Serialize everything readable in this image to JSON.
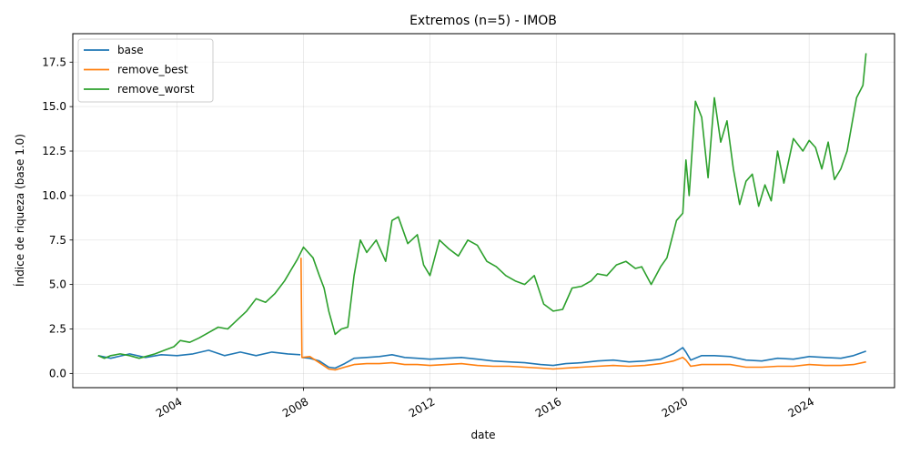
{
  "chart_data": {
    "type": "line",
    "title": "Extremos (n=5) - IMOB",
    "xlabel": "date",
    "ylabel": "Índice de riqueza (base 1.0)",
    "xlim": [
      2000.7,
      2026.7
    ],
    "ylim": [
      -0.8,
      19.1
    ],
    "x_ticks": [
      2004,
      2008,
      2012,
      2016,
      2020,
      2024
    ],
    "x_tick_labels": [
      "2004",
      "2008",
      "2012",
      "2016",
      "2020",
      "2024"
    ],
    "y_ticks": [
      0.0,
      2.5,
      5.0,
      7.5,
      10.0,
      12.5,
      15.0,
      17.5
    ],
    "y_tick_labels": [
      "0.0",
      "2.5",
      "5.0",
      "7.5",
      "10.0",
      "12.5",
      "15.0",
      "17.5"
    ],
    "grid": true,
    "legend_position": "top-left",
    "series": [
      {
        "name": "base",
        "color": "#1f77b4",
        "x": [
          2001.5,
          2001.9,
          2002.5,
          2003.0,
          2003.5,
          2004.0,
          2004.5,
          2005.0,
          2005.5,
          2006.0,
          2006.5,
          2007.0,
          2007.5,
          2007.9
        ],
        "y": [
          1.0,
          0.85,
          1.1,
          0.9,
          1.05,
          1.0,
          1.1,
          1.3,
          1.0,
          1.2,
          1.0,
          1.2,
          1.1,
          1.05
        ],
        "x2": [
          2007.95,
          2008.2,
          2008.5,
          2008.8,
          2009.0,
          2009.3,
          2009.6,
          2010.0,
          2010.4,
          2010.8,
          2011.2,
          2011.6,
          2012.0,
          2012.5,
          2013.0,
          2013.5,
          2014.0,
          2014.5,
          2015.0,
          2015.5,
          2015.9,
          2016.3,
          2016.8,
          2017.3,
          2017.8,
          2018.3,
          2018.8,
          2019.3,
          2019.7,
          2020.0,
          2020.1,
          2020.25,
          2020.6,
          2021.0,
          2021.5,
          2022.0,
          2022.5,
          2023.0,
          2023.5,
          2024.0,
          2024.5,
          2025.0,
          2025.4,
          2025.8
        ],
        "y2": [
          0.9,
          0.85,
          0.7,
          0.35,
          0.3,
          0.55,
          0.85,
          0.9,
          0.95,
          1.05,
          0.9,
          0.85,
          0.8,
          0.85,
          0.9,
          0.8,
          0.7,
          0.65,
          0.6,
          0.5,
          0.45,
          0.55,
          0.6,
          0.7,
          0.75,
          0.65,
          0.7,
          0.8,
          1.1,
          1.45,
          1.2,
          0.75,
          1.0,
          1.0,
          0.95,
          0.75,
          0.7,
          0.85,
          0.8,
          0.95,
          0.9,
          0.85,
          1.0,
          1.25
        ]
      },
      {
        "name": "remove_best",
        "color": "#ff7f0e",
        "x": [
          2007.92,
          2007.95,
          2008.2,
          2008.5,
          2008.8,
          2009.0,
          2009.3,
          2009.6,
          2010.0,
          2010.4,
          2010.8,
          2011.2,
          2011.6,
          2012.0,
          2012.5,
          2013.0,
          2013.5,
          2014.0,
          2014.5,
          2015.0,
          2015.5,
          2015.9,
          2016.3,
          2016.8,
          2017.3,
          2017.8,
          2018.3,
          2018.8,
          2019.3,
          2019.7,
          2020.0,
          2020.1,
          2020.25,
          2020.6,
          2021.0,
          2021.5,
          2022.0,
          2022.5,
          2023.0,
          2023.5,
          2024.0,
          2024.5,
          2025.0,
          2025.4,
          2025.8
        ],
        "y": [
          6.5,
          0.9,
          0.95,
          0.6,
          0.25,
          0.2,
          0.35,
          0.5,
          0.55,
          0.55,
          0.6,
          0.5,
          0.5,
          0.45,
          0.5,
          0.55,
          0.45,
          0.4,
          0.4,
          0.35,
          0.3,
          0.25,
          0.3,
          0.35,
          0.4,
          0.45,
          0.4,
          0.45,
          0.55,
          0.7,
          0.9,
          0.75,
          0.4,
          0.5,
          0.5,
          0.5,
          0.35,
          0.35,
          0.4,
          0.4,
          0.5,
          0.45,
          0.45,
          0.5,
          0.65
        ]
      },
      {
        "name": "remove_worst",
        "color": "#2ca02c",
        "x": [
          2001.5,
          2001.7,
          2001.9,
          2002.2,
          2002.5,
          2002.8,
          2003.0,
          2003.3,
          2003.6,
          2003.9,
          2004.1,
          2004.4,
          2004.7,
          2005.0,
          2005.3,
          2005.6,
          2005.9,
          2006.2,
          2006.5,
          2006.8,
          2007.1,
          2007.4,
          2007.6,
          2007.8,
          2008.0,
          2008.3,
          2008.5,
          2008.65,
          2008.8,
          2009.0,
          2009.2,
          2009.4,
          2009.6,
          2009.8,
          2010.0,
          2010.3,
          2010.6,
          2010.8,
          2011.0,
          2011.3,
          2011.6,
          2011.8,
          2012.0,
          2012.3,
          2012.6,
          2012.9,
          2013.2,
          2013.5,
          2013.8,
          2014.1,
          2014.4,
          2014.7,
          2015.0,
          2015.3,
          2015.6,
          2015.9,
          2016.2,
          2016.5,
          2016.8,
          2017.1,
          2017.3,
          2017.6,
          2017.9,
          2018.2,
          2018.5,
          2018.7,
          2019.0,
          2019.3,
          2019.5,
          2019.8,
          2020.0,
          2020.1,
          2020.2,
          2020.4,
          2020.6,
          2020.8,
          2021.0,
          2021.2,
          2021.4,
          2021.6,
          2021.8,
          2022.0,
          2022.2,
          2022.4,
          2022.6,
          2022.8,
          2023.0,
          2023.2,
          2023.5,
          2023.8,
          2024.0,
          2024.2,
          2024.4,
          2024.6,
          2024.8,
          2025.0,
          2025.2,
          2025.5,
          2025.7,
          2025.8
        ],
        "y": [
          1.0,
          0.85,
          1.0,
          1.1,
          1.0,
          0.85,
          0.95,
          1.1,
          1.3,
          1.5,
          1.85,
          1.75,
          2.0,
          2.3,
          2.6,
          2.5,
          3.0,
          3.5,
          4.2,
          4.0,
          4.5,
          5.2,
          5.8,
          6.4,
          7.1,
          6.5,
          5.5,
          4.8,
          3.5,
          2.2,
          2.5,
          2.6,
          5.5,
          7.5,
          6.8,
          7.5,
          6.3,
          8.6,
          8.8,
          7.3,
          7.8,
          6.1,
          5.5,
          7.5,
          7.0,
          6.6,
          7.5,
          7.2,
          6.3,
          6.0,
          5.5,
          5.2,
          5.0,
          5.5,
          3.9,
          3.5,
          3.6,
          4.8,
          4.9,
          5.2,
          5.6,
          5.5,
          6.1,
          6.3,
          5.9,
          6.0,
          5.0,
          6.0,
          6.5,
          8.6,
          9.0,
          12.0,
          10.0,
          15.3,
          14.4,
          11.0,
          15.5,
          13.0,
          14.2,
          11.5,
          9.5,
          10.8,
          11.2,
          9.4,
          10.6,
          9.7,
          12.5,
          10.7,
          13.2,
          12.5,
          13.1,
          12.7,
          11.5,
          13.0,
          10.9,
          11.5,
          12.5,
          15.5,
          16.2,
          18.0
        ]
      }
    ]
  }
}
